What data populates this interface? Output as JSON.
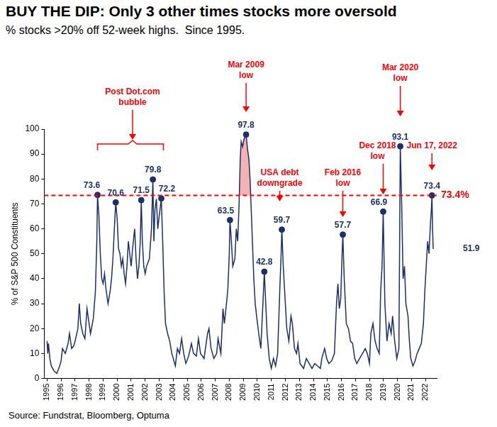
{
  "chart_data": {
    "type": "line",
    "title": "BUY THE DIP: Only 3 other times stocks more oversold",
    "subtitle": "% stocks >20% off 52-week highs.  Since 1995.",
    "y_label": "% of S&P 500 Constituents",
    "source": "Source: Fundstrat, Bloomberg, Optuma",
    "color": "#1a2f6b",
    "grid": false,
    "x": [
      1995.0,
      1995.05,
      1995.1,
      1995.2,
      1995.3,
      1995.5,
      1995.7,
      1995.9,
      1996.0,
      1996.1,
      1996.3,
      1996.5,
      1996.6,
      1996.75,
      1996.9,
      1997.0,
      1997.2,
      1997.3,
      1997.4,
      1997.55,
      1997.7,
      1997.85,
      1997.95,
      1998.1,
      1998.3,
      1998.45,
      1998.55,
      1998.6,
      1998.7,
      1998.8,
      1998.9,
      1999.0,
      1999.1,
      1999.2,
      1999.35,
      1999.5,
      1999.6,
      1999.7,
      1999.8,
      1999.9,
      2000.0,
      2000.1,
      2000.2,
      2000.3,
      2000.4,
      2000.5,
      2000.6,
      2000.7,
      2000.8,
      2000.9,
      2001.0,
      2001.1,
      2001.25,
      2001.35,
      2001.45,
      2001.55,
      2001.65,
      2001.72,
      2001.8,
      2001.9,
      2002.0,
      2002.1,
      2002.3,
      2002.45,
      2002.55,
      2002.62,
      2002.7,
      2002.8,
      2002.9,
      2003.0,
      2003.15,
      2003.25,
      2003.35,
      2003.45,
      2003.6,
      2003.75,
      2003.9,
      2004.0,
      2004.15,
      2004.3,
      2004.45,
      2004.6,
      2004.75,
      2004.9,
      2005.1,
      2005.3,
      2005.45,
      2005.65,
      2005.8,
      2005.95,
      2006.2,
      2006.45,
      2006.55,
      2006.7,
      2006.9,
      2007.1,
      2007.2,
      2007.4,
      2007.55,
      2007.65,
      2007.8,
      2007.9,
      2008.0,
      2008.05,
      2008.15,
      2008.25,
      2008.4,
      2008.5,
      2008.6,
      2008.7,
      2008.78,
      2008.85,
      2008.95,
      2009.05,
      2009.2,
      2009.3,
      2009.4,
      2009.48,
      2009.55,
      2009.65,
      2009.75,
      2009.85,
      2009.95,
      2010.1,
      2010.25,
      2010.4,
      2010.5,
      2010.6,
      2010.7,
      2010.85,
      2011.0,
      2011.15,
      2011.3,
      2011.45,
      2011.6,
      2011.7,
      2011.75,
      2011.85,
      2011.95,
      2012.1,
      2012.25,
      2012.4,
      2012.5,
      2012.65,
      2012.8,
      2012.9,
      2013.05,
      2013.3,
      2013.5,
      2013.7,
      2013.9,
      2014.1,
      2014.3,
      2014.5,
      2014.6,
      2014.8,
      2014.95,
      2015.1,
      2015.3,
      2015.5,
      2015.65,
      2015.75,
      2015.85,
      2015.95,
      2016.05,
      2016.1,
      2016.2,
      2016.35,
      2016.5,
      2016.65,
      2016.8,
      2016.95,
      2017.1,
      2017.3,
      2017.5,
      2017.7,
      2017.85,
      2018.0,
      2018.1,
      2018.25,
      2018.4,
      2018.55,
      2018.7,
      2018.8,
      2018.9,
      2018.98,
      2019.1,
      2019.25,
      2019.4,
      2019.55,
      2019.65,
      2019.8,
      2019.95,
      2020.1,
      2020.16,
      2020.2,
      2020.3,
      2020.4,
      2020.5,
      2020.6,
      2020.75,
      2020.85,
      2020.95,
      2021.1,
      2021.25,
      2021.4,
      2021.55,
      2021.7,
      2021.85,
      2021.95,
      2022.05,
      2022.15,
      2022.25,
      2022.35,
      2022.42,
      2022.46,
      2022.5,
      2022.55
    ],
    "values": [
      15,
      10,
      14,
      8,
      5,
      3,
      2,
      5,
      7,
      12,
      10,
      14,
      18,
      12,
      13,
      15,
      20,
      30,
      22,
      18,
      16,
      28,
      24,
      18,
      24,
      35,
      55,
      73.6,
      65,
      50,
      40,
      38,
      42,
      36,
      30,
      35,
      40,
      48,
      60,
      70.6,
      64,
      52,
      50,
      45,
      48,
      42,
      38,
      45,
      55,
      50,
      45,
      52,
      60,
      48,
      40,
      45,
      55,
      71.5,
      55,
      45,
      42,
      45,
      48,
      60,
      79.8,
      55,
      68,
      72,
      60,
      65,
      72.2,
      55,
      35,
      22,
      18,
      15,
      10,
      8,
      5,
      12,
      10,
      16,
      10,
      6,
      9,
      14,
      10,
      9,
      16,
      10,
      8,
      18,
      20,
      12,
      8,
      10,
      16,
      10,
      28,
      22,
      30,
      36,
      50,
      63.5,
      55,
      45,
      48,
      60,
      55,
      70,
      88,
      95,
      93,
      96,
      97.8,
      92,
      88,
      80,
      70,
      55,
      40,
      30,
      25,
      18,
      12,
      30,
      42.8,
      30,
      18,
      8,
      4,
      8,
      5,
      10,
      35,
      50,
      59.7,
      45,
      35,
      20,
      15,
      25,
      22,
      12,
      10,
      14,
      6,
      4,
      8,
      6,
      4,
      6,
      5,
      4,
      8,
      12,
      8,
      6,
      7,
      10,
      30,
      38,
      28,
      32,
      50,
      57.7,
      40,
      22,
      20,
      15,
      14,
      8,
      6,
      8,
      10,
      12,
      10,
      6,
      18,
      22,
      15,
      12,
      10,
      35,
      45,
      66.9,
      30,
      15,
      22,
      18,
      25,
      15,
      8,
      12,
      60,
      93.1,
      70,
      40,
      45,
      30,
      25,
      15,
      8,
      5,
      7,
      10,
      12,
      14,
      22,
      35,
      45,
      55,
      50,
      62,
      68,
      73.4,
      60,
      51.9
    ],
    "xlim": [
      1994.8,
      2022.8
    ],
    "xticks": [
      1995,
      1996,
      1997,
      1998,
      1999,
      2000,
      2001,
      2002,
      2003,
      2004,
      2005,
      2006,
      2007,
      2008,
      2009,
      2010,
      2011,
      2012,
      2013,
      2014,
      2015,
      2016,
      2017,
      2018,
      2019,
      2020,
      2021,
      2022
    ],
    "ylim": [
      0,
      100
    ],
    "yticks": [
      0,
      10,
      20,
      30,
      40,
      50,
      60,
      70,
      80,
      90,
      100
    ],
    "threshold": {
      "value": 73.4,
      "label": "73.4%",
      "color": "#ff0000",
      "line_style": "dashed"
    },
    "shade": {
      "from": 2008.7,
      "to": 2009.55,
      "color": "#f4a3a3"
    },
    "labeled_points": [
      {
        "x": 1998.6,
        "y": 73.6,
        "marker": "circle"
      },
      {
        "x": 1999.9,
        "y": 70.6,
        "marker": "circle"
      },
      {
        "x": 2001.72,
        "y": 71.5,
        "marker": "circle"
      },
      {
        "x": 2002.55,
        "y": 79.8,
        "marker": "circle"
      },
      {
        "x": 2003.15,
        "y": 72.2,
        "marker": "circle"
      },
      {
        "x": 2008.05,
        "y": 63.5,
        "marker": "circle"
      },
      {
        "x": 2009.2,
        "y": 97.8,
        "marker": "circle"
      },
      {
        "x": 2010.5,
        "y": 42.8,
        "marker": "circle"
      },
      {
        "x": 2011.75,
        "y": 59.7,
        "marker": "circle"
      },
      {
        "x": 2016.1,
        "y": 57.7,
        "marker": "circle"
      },
      {
        "x": 2018.98,
        "y": 66.9,
        "marker": "circle"
      },
      {
        "x": 2020.2,
        "y": 93.1,
        "marker": "circle"
      },
      {
        "x": 2022.46,
        "y": 73.4,
        "marker": "circle"
      },
      {
        "x": 2022.55,
        "y": 51.9,
        "marker": "none"
      }
    ],
    "annotations": [
      {
        "lines": [
          "Post Dot.com",
          "bubble"
        ],
        "x": 2001.1,
        "span": [
          1998.6,
          2003.3
        ],
        "color": "#ff0000"
      },
      {
        "lines": [
          "Mar 2009",
          "low"
        ],
        "x": 2009.2,
        "color": "#ff0000"
      },
      {
        "lines": [
          "USA debt",
          "downgrade"
        ],
        "x": 2011.6,
        "color": "#ff0000"
      },
      {
        "lines": [
          "Feb 2016",
          "low"
        ],
        "x": 2016.1,
        "color": "#ff0000"
      },
      {
        "lines": [
          "Dec 2018",
          "low"
        ],
        "x": 2018.98,
        "color": "#ff0000"
      },
      {
        "lines": [
          "Mar 2020",
          "low"
        ],
        "x": 2020.2,
        "color": "#ff0000"
      },
      {
        "lines": [
          "Jun 17, 2022"
        ],
        "x": 2022.46,
        "color": "#ff0000"
      }
    ]
  }
}
